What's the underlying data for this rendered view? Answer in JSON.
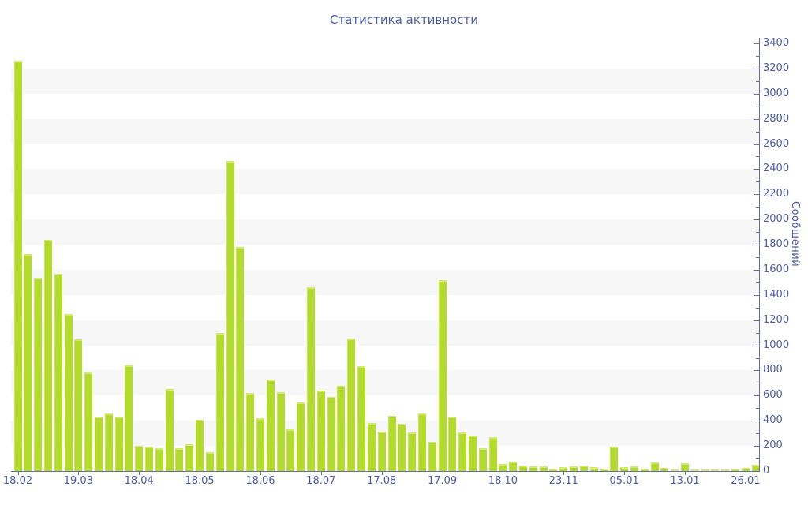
{
  "title": "Статистика активности",
  "chart_data": {
    "type": "bar",
    "title": "Статистика активности",
    "ylabel": "Сообщений",
    "xlabel": "",
    "ylim": [
      0,
      3400
    ],
    "y_major_step": 200,
    "y_minor_step": 100,
    "grid": "alternating horizontal bands of 200 units (gray between 200-400, 600-800, 1000-1200, 1400-1600, 1800-2000, 2200-2400, 2600-2800, 3000-3200)",
    "legend_position": "none",
    "bar_count": 74,
    "values": [
      3265,
      1725,
      1535,
      1840,
      1570,
      1250,
      1050,
      785,
      430,
      460,
      435,
      840,
      200,
      195,
      185,
      655,
      180,
      215,
      410,
      150,
      1100,
      2465,
      1780,
      620,
      420,
      730,
      630,
      335,
      545,
      1460,
      640,
      590,
      675,
      1055,
      835,
      385,
      315,
      440,
      375,
      305,
      455,
      235,
      1520,
      430,
      310,
      280,
      180,
      270,
      55,
      75,
      45,
      35,
      40,
      20,
      30,
      35,
      45,
      30,
      20,
      195,
      30,
      35,
      20,
      70,
      25,
      10,
      60,
      15,
      12,
      10,
      12,
      20,
      25,
      50
    ],
    "x_tick_labels": [
      "18.02",
      "19.03",
      "18.04",
      "18.05",
      "18.06",
      "18.07",
      "17.08",
      "17.09",
      "18.10",
      "23.11",
      "05.01",
      "13.01",
      "26.01"
    ],
    "x_tick_bar_indices": [
      0,
      6,
      12,
      18,
      24,
      30,
      36,
      42,
      48,
      54,
      60,
      66,
      72
    ],
    "colors": {
      "bar_fill": "#b3db2b",
      "bar_highlight": "#d3e96f",
      "band_gray": "#f7f7f7",
      "axis_line": "#5f6fae",
      "label_text": "#4a5da8"
    }
  }
}
